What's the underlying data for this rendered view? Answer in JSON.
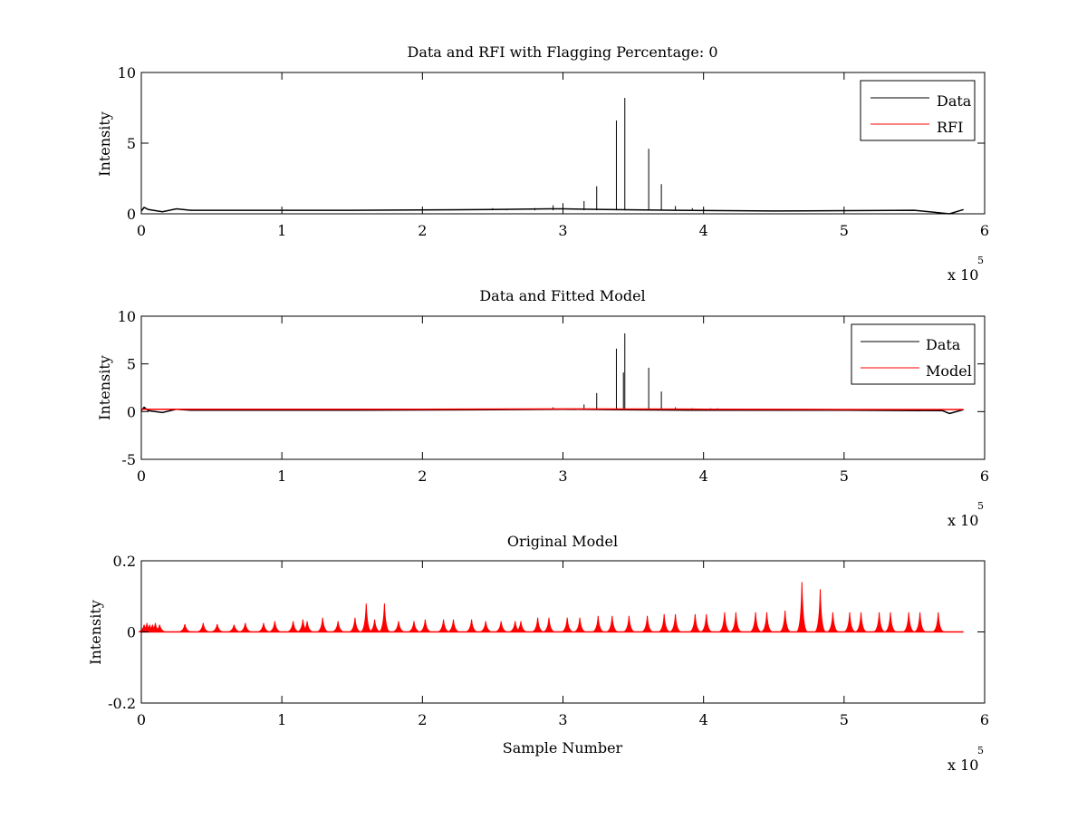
{
  "figure": {
    "background": "#ffffff",
    "series_colors": {
      "Data": "#000000",
      "RFI": "#ff0000",
      "Model": "#ff0000"
    }
  },
  "chart_data": [
    {
      "type": "line",
      "title": "Data and RFI with Flagging Percentage: 0",
      "xlabel": "",
      "ylabel": "Intensity",
      "xlim": [
        0,
        6
      ],
      "ylim": [
        0,
        10
      ],
      "x_exponent_base": "x 10",
      "x_exponent_power": "5",
      "xticks": [
        "0",
        "1",
        "2",
        "3",
        "4",
        "5",
        "6"
      ],
      "yticks": [
        "0",
        "5",
        "10"
      ],
      "ytick_values": [
        0,
        5,
        10
      ],
      "grid": false,
      "legend": "top-right",
      "series": [
        {
          "name": "Data",
          "color": "#000000",
          "points": [
            [
              0,
              0.2
            ],
            [
              0.02,
              0.45
            ],
            [
              0.05,
              0.3
            ],
            [
              0.15,
              0.15
            ],
            [
              0.25,
              0.35
            ],
            [
              0.35,
              0.25
            ],
            [
              1.5,
              0.25
            ],
            [
              2.5,
              0.3
            ],
            [
              2.9,
              0.35
            ],
            [
              3.0,
              0.35
            ],
            [
              3.3,
              0.3
            ],
            [
              3.8,
              0.25
            ],
            [
              4.5,
              0.2
            ],
            [
              5.5,
              0.25
            ],
            [
              5.75,
              0.0
            ],
            [
              5.85,
              0.3
            ]
          ],
          "spikes": [
            [
              2.5,
              0.4
            ],
            [
              2.6,
              0.35
            ],
            [
              2.8,
              0.4
            ],
            [
              2.93,
              0.6
            ],
            [
              3.0,
              0.75
            ],
            [
              3.15,
              0.9
            ],
            [
              3.24,
              1.95
            ],
            [
              3.38,
              6.6
            ],
            [
              3.44,
              8.2
            ],
            [
              3.61,
              4.6
            ],
            [
              3.7,
              2.1
            ],
            [
              3.8,
              0.55
            ],
            [
              3.92,
              0.4
            ],
            [
              4.0,
              0.35
            ]
          ]
        },
        {
          "name": "RFI",
          "color": "#ff0000",
          "points": []
        }
      ]
    },
    {
      "type": "line",
      "title": "Data and Fitted Model",
      "xlabel": "",
      "ylabel": "Intensity",
      "xlim": [
        0,
        6
      ],
      "ylim": [
        -5,
        10
      ],
      "x_exponent_base": "x 10",
      "x_exponent_power": "5",
      "xticks": [
        "0",
        "1",
        "2",
        "3",
        "4",
        "5",
        "6"
      ],
      "yticks": [
        "-5",
        "0",
        "5",
        "10"
      ],
      "ytick_values": [
        -5,
        0,
        5,
        10
      ],
      "grid": false,
      "legend": "top-right",
      "series": [
        {
          "name": "Data",
          "color": "#000000",
          "points": [
            [
              0,
              0.1
            ],
            [
              0.02,
              0.45
            ],
            [
              0.05,
              0.1
            ],
            [
              0.15,
              -0.1
            ],
            [
              0.25,
              0.25
            ],
            [
              0.35,
              0.15
            ],
            [
              1.5,
              0.15
            ],
            [
              2.5,
              0.2
            ],
            [
              3.0,
              0.25
            ],
            [
              3.4,
              0.2
            ],
            [
              4.0,
              0.15
            ],
            [
              5.0,
              0.15
            ],
            [
              5.7,
              0.1
            ],
            [
              5.75,
              -0.2
            ],
            [
              5.85,
              0.2
            ]
          ],
          "spikes": [
            [
              2.93,
              0.45
            ],
            [
              3.15,
              0.75
            ],
            [
              3.24,
              1.95
            ],
            [
              3.38,
              6.6
            ],
            [
              3.44,
              8.2
            ],
            [
              3.43,
              4.1
            ],
            [
              3.61,
              4.6
            ],
            [
              3.7,
              2.1
            ],
            [
              3.8,
              0.45
            ],
            [
              3.92,
              0.35
            ],
            [
              4.05,
              0.35
            ],
            [
              4.1,
              0.35
            ]
          ]
        },
        {
          "name": "Model",
          "color": "#ff0000",
          "points": [
            [
              0,
              0.25
            ],
            [
              0.5,
              0.25
            ],
            [
              1.0,
              0.25
            ],
            [
              2.0,
              0.25
            ],
            [
              3.0,
              0.28
            ],
            [
              4.0,
              0.25
            ],
            [
              5.0,
              0.22
            ],
            [
              5.85,
              0.22
            ]
          ],
          "spikes": []
        }
      ]
    },
    {
      "type": "line",
      "title": "Original Model",
      "xlabel": "Sample Number",
      "ylabel": "Intensity",
      "xlim": [
        0,
        6
      ],
      "ylim": [
        -0.2,
        0.2
      ],
      "x_exponent_base": "x 10",
      "x_exponent_power": "5",
      "xticks": [
        "0",
        "1",
        "2",
        "3",
        "4",
        "5",
        "6"
      ],
      "yticks": [
        "-0.2",
        "0",
        "0.2"
      ],
      "ytick_values": [
        -0.2,
        0,
        0.2
      ],
      "grid": false,
      "legend": "none",
      "series": [
        {
          "name": "",
          "color": "#ff0000",
          "points": [
            [
              0,
              0.0
            ],
            [
              5.85,
              0.0
            ]
          ],
          "spikes": [
            [
              0.02,
              0.02
            ],
            [
              0.04,
              0.025
            ],
            [
              0.06,
              0.02
            ],
            [
              0.08,
              0.02
            ],
            [
              0.1,
              0.025
            ],
            [
              0.13,
              0.02
            ],
            [
              0.31,
              0.022
            ],
            [
              0.44,
              0.025
            ],
            [
              0.54,
              0.022
            ],
            [
              0.66,
              0.02
            ],
            [
              0.74,
              0.025
            ],
            [
              0.87,
              0.025
            ],
            [
              0.95,
              0.03
            ],
            [
              1.08,
              0.03
            ],
            [
              1.15,
              0.035
            ],
            [
              1.18,
              0.03
            ],
            [
              1.29,
              0.04
            ],
            [
              1.4,
              0.03
            ],
            [
              1.52,
              0.04
            ],
            [
              1.6,
              0.08
            ],
            [
              1.66,
              0.035
            ],
            [
              1.73,
              0.08
            ],
            [
              1.83,
              0.03
            ],
            [
              1.94,
              0.03
            ],
            [
              2.02,
              0.035
            ],
            [
              2.15,
              0.035
            ],
            [
              2.22,
              0.035
            ],
            [
              2.35,
              0.035
            ],
            [
              2.45,
              0.03
            ],
            [
              2.56,
              0.03
            ],
            [
              2.66,
              0.03
            ],
            [
              2.7,
              0.03
            ],
            [
              2.82,
              0.04
            ],
            [
              2.9,
              0.04
            ],
            [
              3.03,
              0.04
            ],
            [
              3.12,
              0.04
            ],
            [
              3.25,
              0.045
            ],
            [
              3.35,
              0.045
            ],
            [
              3.47,
              0.045
            ],
            [
              3.6,
              0.045
            ],
            [
              3.72,
              0.05
            ],
            [
              3.8,
              0.05
            ],
            [
              3.94,
              0.05
            ],
            [
              4.02,
              0.05
            ],
            [
              4.15,
              0.055
            ],
            [
              4.23,
              0.055
            ],
            [
              4.37,
              0.055
            ],
            [
              4.45,
              0.055
            ],
            [
              4.58,
              0.06
            ],
            [
              4.7,
              0.14
            ],
            [
              4.83,
              0.12
            ],
            [
              4.92,
              0.055
            ],
            [
              5.04,
              0.055
            ],
            [
              5.12,
              0.055
            ],
            [
              5.25,
              0.055
            ],
            [
              5.33,
              0.055
            ],
            [
              5.46,
              0.055
            ],
            [
              5.54,
              0.055
            ],
            [
              5.67,
              0.055
            ]
          ]
        }
      ]
    }
  ]
}
